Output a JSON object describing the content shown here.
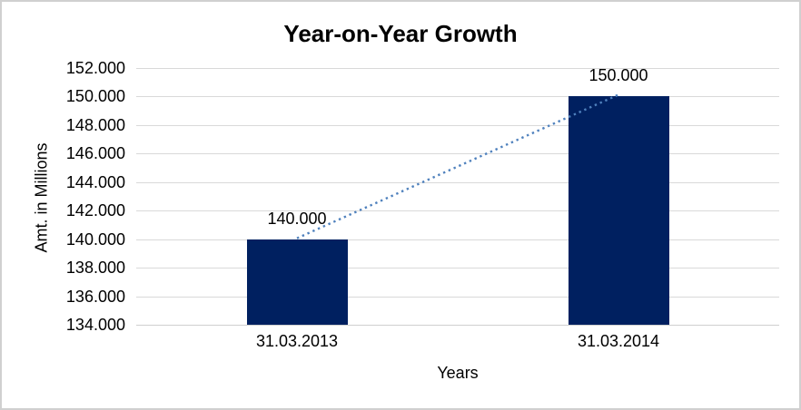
{
  "chart_data": {
    "type": "bar",
    "title": "Year-on-Year Growth",
    "xlabel": "Years",
    "ylabel": "Amt. in Millions",
    "categories": [
      "31.03.2013",
      "31.03.2014"
    ],
    "values": [
      140000,
      150000
    ],
    "value_labels": [
      "140.000",
      "150.000"
    ],
    "ylim": [
      134000,
      152000
    ],
    "ytick_step": 2000,
    "ytick_labels": [
      "134.000",
      "136.000",
      "138.000",
      "140.000",
      "142.000",
      "144.000",
      "146.000",
      "148.000",
      "150.000",
      "152.000"
    ],
    "grid": true,
    "legend": "none",
    "colors": {
      "bar": "#002060",
      "trendline": "#4f81bd",
      "gridline": "#d9d9d9",
      "axis_line": "#cfcfcf",
      "text": "#000000"
    },
    "trendline": {
      "style": "dotted",
      "from_value": 140000,
      "to_value": 150000
    }
  }
}
